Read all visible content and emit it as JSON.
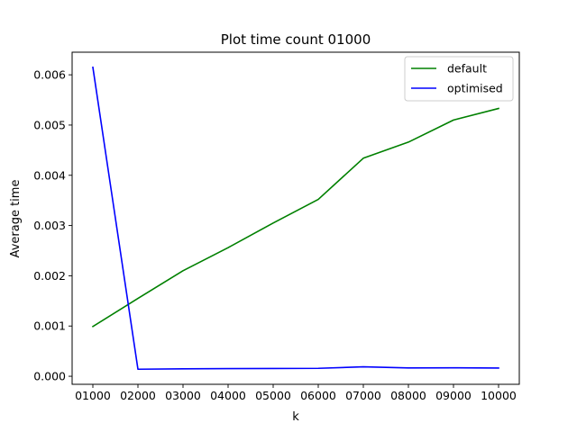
{
  "chart_data": {
    "type": "line",
    "title": "Plot time count 01000",
    "xlabel": "k",
    "ylabel": "Average time",
    "categories": [
      "01000",
      "02000",
      "03000",
      "04000",
      "05000",
      "06000",
      "07000",
      "08000",
      "09000",
      "10000"
    ],
    "series": [
      {
        "name": "default",
        "color": "#008000",
        "values": [
          0.00099,
          0.00155,
          0.0021,
          0.00256,
          0.00305,
          0.00352,
          0.00434,
          0.00466,
          0.0051,
          0.00533
        ]
      },
      {
        "name": "optimised",
        "color": "#0000ff",
        "values": [
          0.00615,
          0.00014,
          0.000148,
          0.000152,
          0.000155,
          0.000158,
          0.000188,
          0.000165,
          0.000168,
          0.000163
        ]
      }
    ],
    "yticks": [
      0.0,
      0.001,
      0.002,
      0.003,
      0.004,
      0.005,
      0.006
    ],
    "ytick_labels": [
      "0.000",
      "0.001",
      "0.002",
      "0.003",
      "0.004",
      "0.005",
      "0.006"
    ],
    "ylim": [
      -0.00016,
      0.00645
    ],
    "grid": false,
    "legend_position": "top-right"
  }
}
